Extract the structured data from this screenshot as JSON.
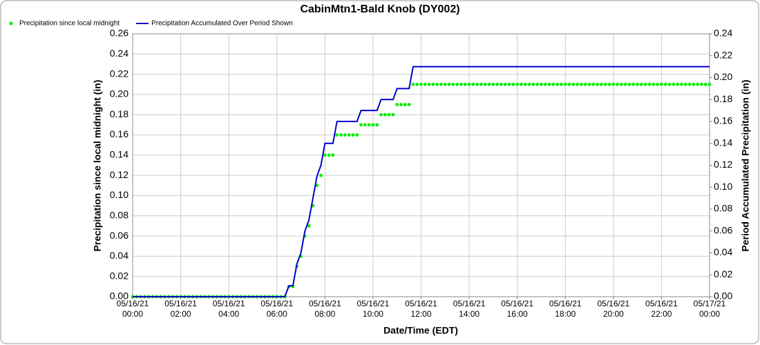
{
  "chart_data": {
    "type": "line",
    "title": "CabinMtn1-Bald Knob (DY002)",
    "x_label": "Date/Time (EDT)",
    "y_label": "Precipitation since local midnight (in)",
    "y2_label": "Period Accumulated Precipitation (in)",
    "x": [
      "05/16/21 00:00",
      "05/16/21 00:10",
      "05/16/21 00:20",
      "05/16/21 00:30",
      "05/16/21 00:40",
      "05/16/21 00:50",
      "05/16/21 01:00",
      "05/16/21 01:10",
      "05/16/21 01:20",
      "05/16/21 01:30",
      "05/16/21 01:40",
      "05/16/21 01:50",
      "05/16/21 02:00",
      "05/16/21 02:10",
      "05/16/21 02:20",
      "05/16/21 02:30",
      "05/16/21 02:40",
      "05/16/21 02:50",
      "05/16/21 03:00",
      "05/16/21 03:10",
      "05/16/21 03:20",
      "05/16/21 03:30",
      "05/16/21 03:40",
      "05/16/21 03:50",
      "05/16/21 04:00",
      "05/16/21 04:10",
      "05/16/21 04:20",
      "05/16/21 04:30",
      "05/16/21 04:40",
      "05/16/21 04:50",
      "05/16/21 05:00",
      "05/16/21 05:10",
      "05/16/21 05:20",
      "05/16/21 05:30",
      "05/16/21 05:40",
      "05/16/21 05:50",
      "05/16/21 06:00",
      "05/16/21 06:10",
      "05/16/21 06:20",
      "05/16/21 06:30",
      "05/16/21 06:40",
      "05/16/21 06:50",
      "05/16/21 07:00",
      "05/16/21 07:10",
      "05/16/21 07:20",
      "05/16/21 07:30",
      "05/16/21 07:40",
      "05/16/21 07:50",
      "05/16/21 08:00",
      "05/16/21 08:10",
      "05/16/21 08:20",
      "05/16/21 08:30",
      "05/16/21 08:40",
      "05/16/21 08:50",
      "05/16/21 09:00",
      "05/16/21 09:10",
      "05/16/21 09:20",
      "05/16/21 09:30",
      "05/16/21 09:40",
      "05/16/21 09:50",
      "05/16/21 10:00",
      "05/16/21 10:10",
      "05/16/21 10:20",
      "05/16/21 10:30",
      "05/16/21 10:40",
      "05/16/21 10:50",
      "05/16/21 11:00",
      "05/16/21 11:10",
      "05/16/21 11:20",
      "05/16/21 11:30",
      "05/16/21 11:40",
      "05/16/21 11:50",
      "05/16/21 12:00",
      "05/16/21 12:10",
      "05/16/21 12:20",
      "05/16/21 12:30",
      "05/16/21 12:40",
      "05/16/21 12:50",
      "05/16/21 13:00",
      "05/16/21 13:10",
      "05/16/21 13:20",
      "05/16/21 13:30",
      "05/16/21 13:40",
      "05/16/21 13:50",
      "05/16/21 14:00",
      "05/16/21 14:10",
      "05/16/21 14:20",
      "05/16/21 14:30",
      "05/16/21 14:40",
      "05/16/21 14:50",
      "05/16/21 15:00",
      "05/16/21 15:10",
      "05/16/21 15:20",
      "05/16/21 15:30",
      "05/16/21 15:40",
      "05/16/21 15:50",
      "05/16/21 16:00",
      "05/16/21 16:10",
      "05/16/21 16:20",
      "05/16/21 16:30",
      "05/16/21 16:40",
      "05/16/21 16:50",
      "05/16/21 17:00",
      "05/16/21 17:10",
      "05/16/21 17:20",
      "05/16/21 17:30",
      "05/16/21 17:40",
      "05/16/21 17:50",
      "05/16/21 18:00",
      "05/16/21 18:10",
      "05/16/21 18:20",
      "05/16/21 18:30",
      "05/16/21 18:40",
      "05/16/21 18:50",
      "05/16/21 19:00",
      "05/16/21 19:10",
      "05/16/21 19:20",
      "05/16/21 19:30",
      "05/16/21 19:40",
      "05/16/21 19:50",
      "05/16/21 20:00",
      "05/16/21 20:10",
      "05/16/21 20:20",
      "05/16/21 20:30",
      "05/16/21 20:40",
      "05/16/21 20:50",
      "05/16/21 21:00",
      "05/16/21 21:10",
      "05/16/21 21:20",
      "05/16/21 21:30",
      "05/16/21 21:40",
      "05/16/21 21:50",
      "05/16/21 22:00",
      "05/16/21 22:10",
      "05/16/21 22:20",
      "05/16/21 22:30",
      "05/16/21 22:40",
      "05/16/21 22:50",
      "05/16/21 23:00",
      "05/16/21 23:10",
      "05/16/21 23:20",
      "05/16/21 23:30",
      "05/16/21 23:40",
      "05/16/21 23:50",
      "05/17/21 00:00"
    ],
    "series": [
      {
        "name": "Precipitation since local midnight",
        "color": "#00ee00",
        "style": "dots",
        "axis": "y",
        "values": [
          0,
          0,
          0,
          0,
          0,
          0,
          0,
          0,
          0,
          0,
          0,
          0,
          0,
          0,
          0,
          0,
          0,
          0,
          0,
          0,
          0,
          0,
          0,
          0,
          0,
          0,
          0,
          0,
          0,
          0,
          0,
          0,
          0,
          0,
          0,
          0,
          0,
          0,
          0,
          0.01,
          0.01,
          0.03,
          0.04,
          0.06,
          0.07,
          0.09,
          0.11,
          0.12,
          0.14,
          0.14,
          0.14,
          0.16,
          0.16,
          0.16,
          0.16,
          0.16,
          0.16,
          0.17,
          0.17,
          0.17,
          0.17,
          0.17,
          0.18,
          0.18,
          0.18,
          0.18,
          0.19,
          0.19,
          0.19,
          0.19,
          0.21,
          0.21,
          0.21,
          0.21,
          0.21,
          0.21,
          0.21,
          0.21,
          0.21,
          0.21,
          0.21,
          0.21,
          0.21,
          0.21,
          0.21,
          0.21,
          0.21,
          0.21,
          0.21,
          0.21,
          0.21,
          0.21,
          0.21,
          0.21,
          0.21,
          0.21,
          0.21,
          0.21,
          0.21,
          0.21,
          0.21,
          0.21,
          0.21,
          0.21,
          0.21,
          0.21,
          0.21,
          0.21,
          0.21,
          0.21,
          0.21,
          0.21,
          0.21,
          0.21,
          0.21,
          0.21,
          0.21,
          0.21,
          0.21,
          0.21,
          0.21,
          0.21,
          0.21,
          0.21,
          0.21,
          0.21,
          0.21,
          0.21,
          0.21,
          0.21,
          0.21,
          0.21,
          0.21,
          0.21,
          0.21,
          0.21,
          0.21,
          0.21,
          0.21,
          0.21,
          0.21,
          0.21,
          0.21,
          0.21,
          0.21
        ]
      },
      {
        "name": "Precipitation Accumulated Over Period Shown",
        "color": "#0000cc",
        "style": "line",
        "axis": "y2",
        "values": [
          0,
          0,
          0,
          0,
          0,
          0,
          0,
          0,
          0,
          0,
          0,
          0,
          0,
          0,
          0,
          0,
          0,
          0,
          0,
          0,
          0,
          0,
          0,
          0,
          0,
          0,
          0,
          0,
          0,
          0,
          0,
          0,
          0,
          0,
          0,
          0,
          0,
          0,
          0,
          0.01,
          0.01,
          0.03,
          0.04,
          0.06,
          0.07,
          0.09,
          0.11,
          0.12,
          0.14,
          0.14,
          0.14,
          0.16,
          0.16,
          0.16,
          0.16,
          0.16,
          0.16,
          0.17,
          0.17,
          0.17,
          0.17,
          0.17,
          0.18,
          0.18,
          0.18,
          0.18,
          0.19,
          0.19,
          0.19,
          0.19,
          0.21,
          0.21,
          0.21,
          0.21,
          0.21,
          0.21,
          0.21,
          0.21,
          0.21,
          0.21,
          0.21,
          0.21,
          0.21,
          0.21,
          0.21,
          0.21,
          0.21,
          0.21,
          0.21,
          0.21,
          0.21,
          0.21,
          0.21,
          0.21,
          0.21,
          0.21,
          0.21,
          0.21,
          0.21,
          0.21,
          0.21,
          0.21,
          0.21,
          0.21,
          0.21,
          0.21,
          0.21,
          0.21,
          0.21,
          0.21,
          0.21,
          0.21,
          0.21,
          0.21,
          0.21,
          0.21,
          0.21,
          0.21,
          0.21,
          0.21,
          0.21,
          0.21,
          0.21,
          0.21,
          0.21,
          0.21,
          0.21,
          0.21,
          0.21,
          0.21,
          0.21,
          0.21,
          0.21,
          0.21,
          0.21,
          0.21,
          0.21,
          0.21,
          0.21,
          0.21,
          0.21,
          0.21,
          0.21,
          0.21,
          0.21
        ]
      }
    ],
    "xlim": [
      "05/16/21 00:00",
      "05/17/21 00:00"
    ],
    "xticks": [
      "05/16/21 00:00",
      "05/16/21 02:00",
      "05/16/21 04:00",
      "05/16/21 06:00",
      "05/16/21 08:00",
      "05/16/21 10:00",
      "05/16/21 12:00",
      "05/16/21 14:00",
      "05/16/21 16:00",
      "05/16/21 18:00",
      "05/16/21 20:00",
      "05/16/21 22:00",
      "05/17/21 00:00"
    ],
    "ylim": [
      0,
      0.26
    ],
    "yticks": [
      {
        "value": 0,
        "label": "0.00"
      },
      0.02,
      0.04,
      0.06,
      0.08,
      {
        "value": 0.1,
        "label": "0.10"
      },
      0.12,
      0.14,
      0.16,
      0.18,
      {
        "value": 0.2,
        "label": "0.20"
      },
      0.22,
      0.24,
      0.26
    ],
    "y2lim": [
      0,
      0.24
    ],
    "y2ticks": [
      {
        "value": 0,
        "label": "0.00"
      },
      0.02,
      0.04,
      0.06,
      0.08,
      {
        "value": 0.1,
        "label": "0.10"
      },
      0.12,
      0.14,
      0.16,
      0.18,
      {
        "value": 0.2,
        "label": "0.20"
      },
      0.22,
      0.24
    ],
    "grid": true,
    "legend": "top-left"
  }
}
